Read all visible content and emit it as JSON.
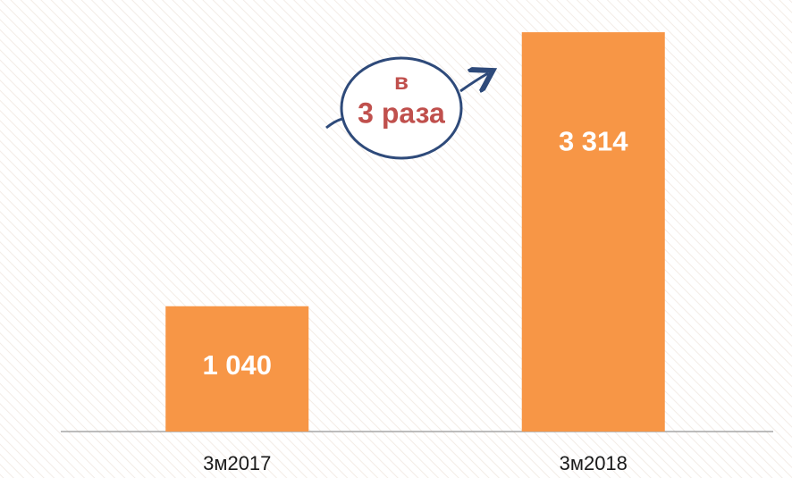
{
  "chart_data": {
    "type": "bar",
    "categories": [
      "3м2017",
      "3м2018"
    ],
    "values": [
      1040,
      3314
    ],
    "value_labels": [
      "1 040",
      "3 314"
    ],
    "color": "#f79646",
    "ylim": [
      0,
      3500
    ],
    "annotations": [
      "в",
      "3 раза"
    ]
  }
}
